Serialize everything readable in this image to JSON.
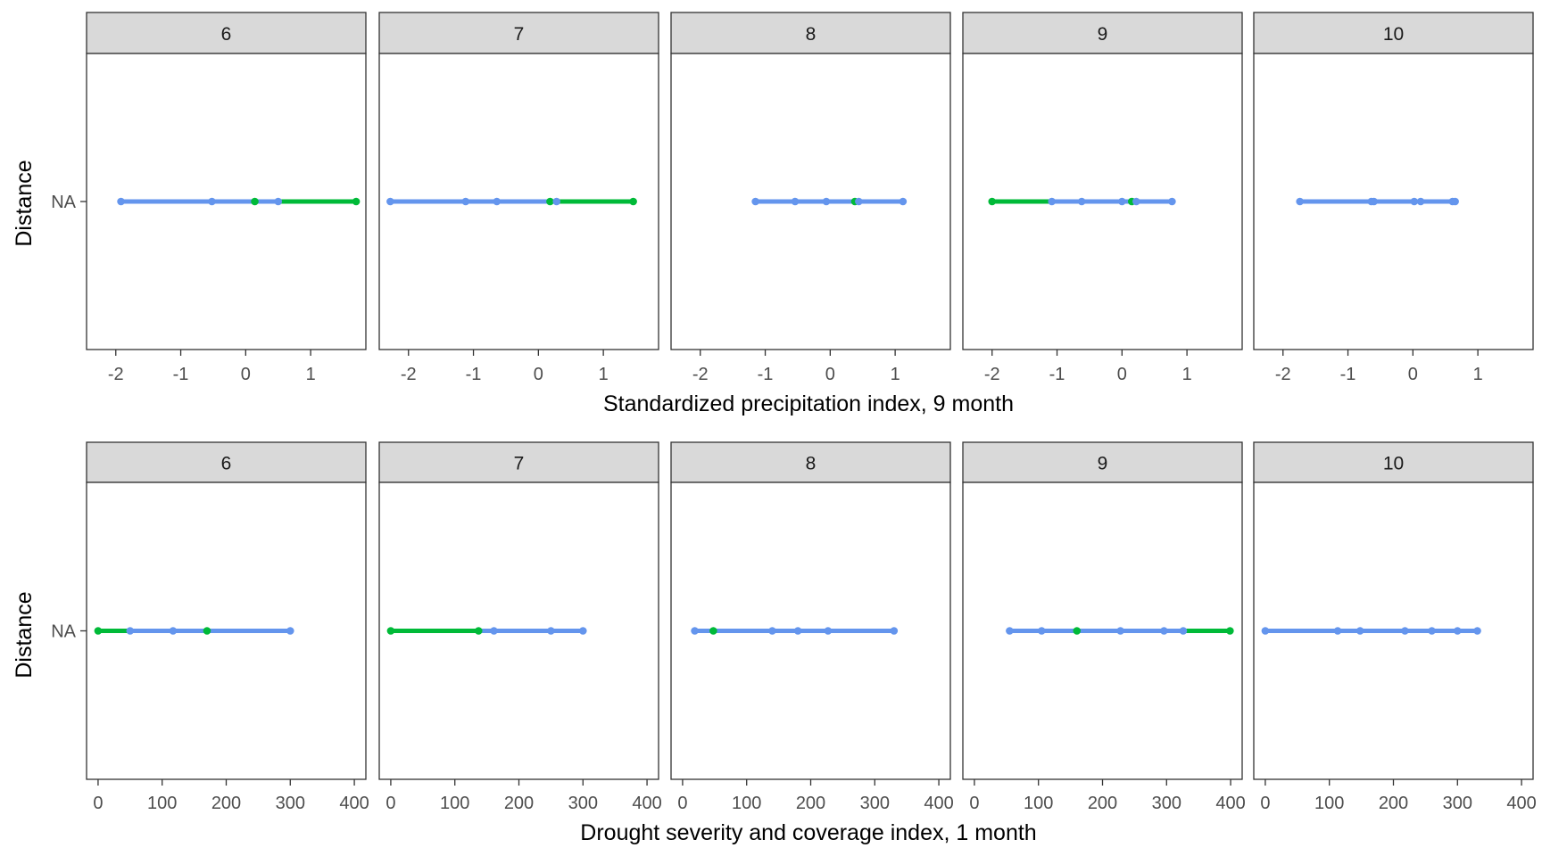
{
  "colors": {
    "line_default": "#6495ED",
    "line_highlight": "#00BA38",
    "strip_fill": "#D9D9D9",
    "panel_border": "#333333",
    "tick_label": "#4D4D4D"
  },
  "chart_data": [
    {
      "type": "line",
      "xlabel": "Standardized precipitation index, 9 month",
      "ylabel": "Distance",
      "y_categories": [
        "NA"
      ],
      "xlim": [
        -2.45,
        1.85
      ],
      "x_ticks": [
        -2,
        -1,
        0,
        1
      ],
      "x_tick_labels": [
        "-2",
        "-1",
        "0",
        "1"
      ],
      "grid": false,
      "facets": [
        {
          "label": "6",
          "points": [
            {
              "x": -1.92,
              "c": "default"
            },
            {
              "x": -0.52,
              "c": "default"
            },
            {
              "x": 0.14,
              "c": "highlight"
            },
            {
              "x": 0.5,
              "c": "default"
            },
            {
              "x": 1.7,
              "c": "highlight"
            }
          ],
          "segments": [
            {
              "from": -1.92,
              "to": 0.5,
              "c": "default"
            },
            {
              "from": 0.5,
              "to": 1.7,
              "c": "highlight"
            }
          ]
        },
        {
          "label": "7",
          "points": [
            {
              "x": -2.28,
              "c": "default"
            },
            {
              "x": -1.12,
              "c": "default"
            },
            {
              "x": -0.64,
              "c": "default"
            },
            {
              "x": 0.18,
              "c": "highlight"
            },
            {
              "x": 0.28,
              "c": "default"
            },
            {
              "x": 1.46,
              "c": "highlight"
            }
          ],
          "segments": [
            {
              "from": -2.28,
              "to": 0.28,
              "c": "default"
            },
            {
              "from": 0.28,
              "to": 1.46,
              "c": "highlight"
            }
          ]
        },
        {
          "label": "8",
          "points": [
            {
              "x": -1.15,
              "c": "default"
            },
            {
              "x": -0.54,
              "c": "default"
            },
            {
              "x": -0.06,
              "c": "default"
            },
            {
              "x": 0.38,
              "c": "highlight"
            },
            {
              "x": 0.44,
              "c": "default"
            },
            {
              "x": 1.12,
              "c": "default"
            }
          ],
          "segments": [
            {
              "from": -1.15,
              "to": 1.12,
              "c": "default"
            }
          ]
        },
        {
          "label": "9",
          "points": [
            {
              "x": -2.0,
              "c": "highlight"
            },
            {
              "x": -1.08,
              "c": "default"
            },
            {
              "x": -0.62,
              "c": "default"
            },
            {
              "x": 0.0,
              "c": "default"
            },
            {
              "x": 0.15,
              "c": "highlight"
            },
            {
              "x": 0.22,
              "c": "default"
            },
            {
              "x": 0.77,
              "c": "default"
            }
          ],
          "segments": [
            {
              "from": -2.0,
              "to": -1.08,
              "c": "highlight"
            },
            {
              "from": -1.08,
              "to": 0.77,
              "c": "default"
            }
          ]
        },
        {
          "label": "10",
          "points": [
            {
              "x": -1.74,
              "c": "default"
            },
            {
              "x": -0.64,
              "c": "default"
            },
            {
              "x": -0.6,
              "c": "default"
            },
            {
              "x": 0.02,
              "c": "default"
            },
            {
              "x": 0.12,
              "c": "default"
            },
            {
              "x": 0.61,
              "c": "default"
            },
            {
              "x": 0.65,
              "c": "default"
            }
          ],
          "segments": [
            {
              "from": -1.74,
              "to": 0.65,
              "c": "default"
            }
          ]
        }
      ]
    },
    {
      "type": "line",
      "xlabel": "Drought severity and coverage index, 1 month",
      "ylabel": "Distance",
      "y_categories": [
        "NA"
      ],
      "xlim": [
        -18,
        418
      ],
      "x_ticks": [
        0,
        100,
        200,
        300,
        400
      ],
      "x_tick_labels": [
        "0",
        "100",
        "200",
        "300",
        "400"
      ],
      "grid": false,
      "facets": [
        {
          "label": "6",
          "points": [
            {
              "x": 0,
              "c": "highlight"
            },
            {
              "x": 50,
              "c": "default"
            },
            {
              "x": 117,
              "c": "default"
            },
            {
              "x": 170,
              "c": "highlight"
            },
            {
              "x": 300,
              "c": "default"
            }
          ],
          "segments": [
            {
              "from": 0,
              "to": 50,
              "c": "highlight"
            },
            {
              "from": 50,
              "to": 300,
              "c": "default"
            }
          ]
        },
        {
          "label": "7",
          "points": [
            {
              "x": 0,
              "c": "highlight"
            },
            {
              "x": 137,
              "c": "highlight"
            },
            {
              "x": 161,
              "c": "default"
            },
            {
              "x": 250,
              "c": "default"
            },
            {
              "x": 300,
              "c": "default"
            }
          ],
          "segments": [
            {
              "from": 0,
              "to": 137,
              "c": "highlight"
            },
            {
              "from": 137,
              "to": 300,
              "c": "default"
            }
          ]
        },
        {
          "label": "8",
          "points": [
            {
              "x": 19,
              "c": "default"
            },
            {
              "x": 48,
              "c": "highlight"
            },
            {
              "x": 140,
              "c": "default"
            },
            {
              "x": 180,
              "c": "default"
            },
            {
              "x": 227,
              "c": "default"
            },
            {
              "x": 330,
              "c": "default"
            }
          ],
          "segments": [
            {
              "from": 19,
              "to": 330,
              "c": "default"
            }
          ]
        },
        {
          "label": "9",
          "points": [
            {
              "x": 55,
              "c": "default"
            },
            {
              "x": 105,
              "c": "default"
            },
            {
              "x": 160,
              "c": "highlight"
            },
            {
              "x": 228,
              "c": "default"
            },
            {
              "x": 296,
              "c": "default"
            },
            {
              "x": 326,
              "c": "default"
            },
            {
              "x": 399,
              "c": "highlight"
            }
          ],
          "segments": [
            {
              "from": 55,
              "to": 326,
              "c": "default"
            },
            {
              "from": 326,
              "to": 399,
              "c": "highlight"
            }
          ]
        },
        {
          "label": "10",
          "points": [
            {
              "x": 0,
              "c": "default"
            },
            {
              "x": 113,
              "c": "default"
            },
            {
              "x": 148,
              "c": "default"
            },
            {
              "x": 218,
              "c": "default"
            },
            {
              "x": 260,
              "c": "default"
            },
            {
              "x": 300,
              "c": "default"
            },
            {
              "x": 331,
              "c": "default"
            }
          ],
          "segments": [
            {
              "from": 0,
              "to": 331,
              "c": "default"
            }
          ]
        }
      ]
    }
  ]
}
